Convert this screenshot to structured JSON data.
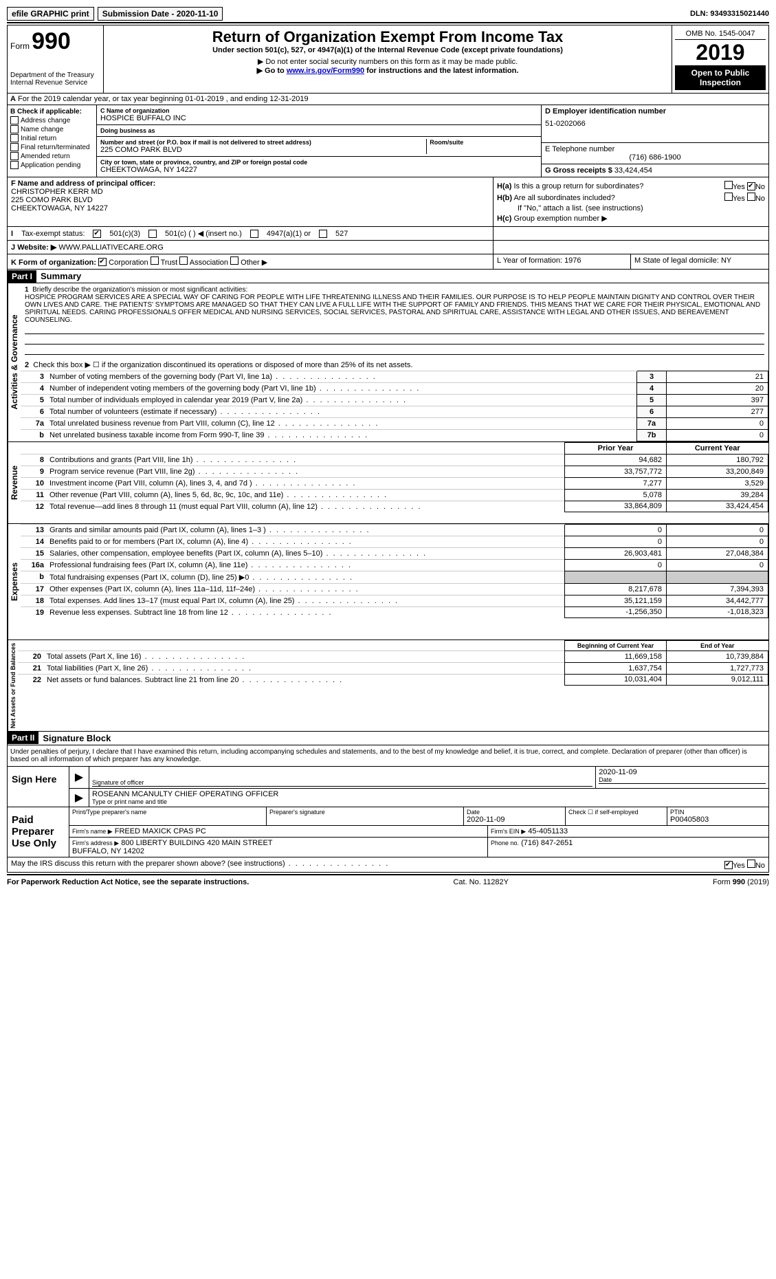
{
  "top_bar": {
    "efile": "efile GRAPHIC print",
    "submission": "Submission Date - 2020-11-10",
    "dln": "DLN: 93493315021440"
  },
  "header": {
    "form_label": "Form",
    "form_number": "990",
    "dept": "Department of the Treasury\nInternal Revenue Service",
    "title": "Return of Organization Exempt From Income Tax",
    "subtitle": "Under section 501(c), 527, or 4947(a)(1) of the Internal Revenue Code (except private foundations)",
    "note1": "Do not enter social security numbers on this form as it may be made public.",
    "note2_pre": "Go to ",
    "note2_link": "www.irs.gov/Form990",
    "note2_post": " for instructions and the latest information.",
    "omb": "OMB No. 1545-0047",
    "year": "2019",
    "open": "Open to Public Inspection"
  },
  "section_a": "For the 2019 calendar year, or tax year beginning 01-01-2019   , and ending 12-31-2019",
  "section_b": {
    "label": "Check if applicable:",
    "items": [
      "Address change",
      "Name change",
      "Initial return",
      "Final return/terminated",
      "Amended return",
      "Application pending"
    ]
  },
  "section_c": {
    "name_label": "C Name of organization",
    "name": "HOSPICE BUFFALO INC",
    "dba_label": "Doing business as",
    "dba": "",
    "street_label": "Number and street (or P.O. box if mail is not delivered to street address)",
    "room_label": "Room/suite",
    "street": "225 COMO PARK BLVD",
    "city_label": "City or town, state or province, country, and ZIP or foreign postal code",
    "city": "CHEEKTOWAGA, NY  14227"
  },
  "section_d": {
    "label": "D Employer identification number",
    "value": "51-0202066"
  },
  "section_e": {
    "label": "E Telephone number",
    "value": "(716) 686-1900"
  },
  "section_g": {
    "label": "G Gross receipts $",
    "value": "33,424,454"
  },
  "section_f": {
    "label": "F Name and address of principal officer:",
    "name": "CHRISTOPHER KERR MD",
    "addr1": "225 COMO PARK BLVD",
    "addr2": "CHEEKTOWAGA, NY  14227"
  },
  "section_h": {
    "ha": "Is this a group return for subordinates?",
    "hb": "Are all subordinates included?",
    "hb_note": "If \"No,\" attach a list. (see instructions)",
    "hc": "Group exemption number ▶",
    "ha_label": "H(a)",
    "hb_label": "H(b)",
    "hc_label": "H(c)",
    "yes": "Yes",
    "no": "No"
  },
  "section_i": {
    "label": "Tax-exempt status:",
    "opt1": "501(c)(3)",
    "opt2": "501(c) (   ) ◀ (insert no.)",
    "opt3": "4947(a)(1) or",
    "opt4": "527"
  },
  "section_j": {
    "label": "Website: ▶",
    "value": "WWW.PALLIATIVECARE.ORG"
  },
  "section_k": {
    "label": "K Form of organization:",
    "corp": "Corporation",
    "trust": "Trust",
    "assoc": "Association",
    "other": "Other ▶"
  },
  "section_l": {
    "label": "L Year of formation:",
    "value": "1976"
  },
  "section_m": {
    "label": "M State of legal domicile:",
    "value": "NY"
  },
  "part1": {
    "header": "Part I",
    "title": "Summary",
    "mission_label": "Briefly describe the organization's mission or most significant activities:",
    "mission": "HOSPICE PROGRAM SERVICES ARE A SPECIAL WAY OF CARING FOR PEOPLE WITH LIFE THREATENING ILLNESS AND THEIR FAMILIES. OUR PURPOSE IS TO HELP PEOPLE MAINTAIN DIGNITY AND CONTROL OVER THEIR OWN LIVES AND CARE. THE PATIENTS' SYMPTOMS ARE MANAGED SO THAT THEY CAN LIVE A FULL LIFE WITH THE SUPPORT OF FAMILY AND FRIENDS. THIS MEANS THAT WE CARE FOR THEIR PHYSICAL, EMOTIONAL AND SPIRITUAL NEEDS. CARING PROFESSIONALS OFFER MEDICAL AND NURSING SERVICES, SOCIAL SERVICES, PASTORAL AND SPIRITUAL CARE, ASSISTANCE WITH LEGAL AND OTHER ISSUES, AND BEREAVEMENT COUNSELING.",
    "line2": "Check this box ▶ ☐ if the organization discontinued its operations or disposed of more than 25% of its net assets.",
    "side_gov": "Activities & Governance",
    "side_rev": "Revenue",
    "side_exp": "Expenses",
    "side_net": "Net Assets or Fund Balances",
    "col_prior": "Prior Year",
    "col_current": "Current Year",
    "col_boy": "Beginning of Current Year",
    "col_eoy": "End of Year",
    "gov_rows": [
      {
        "n": "3",
        "d": "Number of voting members of the governing body (Part VI, line 1a)",
        "b": "3",
        "v": "21"
      },
      {
        "n": "4",
        "d": "Number of independent voting members of the governing body (Part VI, line 1b)",
        "b": "4",
        "v": "20"
      },
      {
        "n": "5",
        "d": "Total number of individuals employed in calendar year 2019 (Part V, line 2a)",
        "b": "5",
        "v": "397"
      },
      {
        "n": "6",
        "d": "Total number of volunteers (estimate if necessary)",
        "b": "6",
        "v": "277"
      },
      {
        "n": "7a",
        "d": "Total unrelated business revenue from Part VIII, column (C), line 12",
        "b": "7a",
        "v": "0"
      },
      {
        "n": "b",
        "d": "Net unrelated business taxable income from Form 990-T, line 39",
        "b": "7b",
        "v": "0"
      }
    ],
    "rev_rows": [
      {
        "n": "8",
        "d": "Contributions and grants (Part VIII, line 1h)",
        "p": "94,682",
        "c": "180,792"
      },
      {
        "n": "9",
        "d": "Program service revenue (Part VIII, line 2g)",
        "p": "33,757,772",
        "c": "33,200,849"
      },
      {
        "n": "10",
        "d": "Investment income (Part VIII, column (A), lines 3, 4, and 7d )",
        "p": "7,277",
        "c": "3,529"
      },
      {
        "n": "11",
        "d": "Other revenue (Part VIII, column (A), lines 5, 6d, 8c, 9c, 10c, and 11e)",
        "p": "5,078",
        "c": "39,284"
      },
      {
        "n": "12",
        "d": "Total revenue—add lines 8 through 11 (must equal Part VIII, column (A), line 12)",
        "p": "33,864,809",
        "c": "33,424,454"
      }
    ],
    "exp_rows": [
      {
        "n": "13",
        "d": "Grants and similar amounts paid (Part IX, column (A), lines 1–3 )",
        "p": "0",
        "c": "0"
      },
      {
        "n": "14",
        "d": "Benefits paid to or for members (Part IX, column (A), line 4)",
        "p": "0",
        "c": "0"
      },
      {
        "n": "15",
        "d": "Salaries, other compensation, employee benefits (Part IX, column (A), lines 5–10)",
        "p": "26,903,481",
        "c": "27,048,384"
      },
      {
        "n": "16a",
        "d": "Professional fundraising fees (Part IX, column (A), line 11e)",
        "p": "0",
        "c": "0"
      },
      {
        "n": "b",
        "d": "Total fundraising expenses (Part IX, column (D), line 25) ▶0",
        "p": "",
        "c": "",
        "shaded": true
      },
      {
        "n": "17",
        "d": "Other expenses (Part IX, column (A), lines 11a–11d, 11f–24e)",
        "p": "8,217,678",
        "c": "7,394,393"
      },
      {
        "n": "18",
        "d": "Total expenses. Add lines 13–17 (must equal Part IX, column (A), line 25)",
        "p": "35,121,159",
        "c": "34,442,777"
      },
      {
        "n": "19",
        "d": "Revenue less expenses. Subtract line 18 from line 12",
        "p": "-1,256,350",
        "c": "-1,018,323"
      }
    ],
    "net_rows": [
      {
        "n": "20",
        "d": "Total assets (Part X, line 16)",
        "p": "11,669,158",
        "c": "10,739,884"
      },
      {
        "n": "21",
        "d": "Total liabilities (Part X, line 26)",
        "p": "1,637,754",
        "c": "1,727,773"
      },
      {
        "n": "22",
        "d": "Net assets or fund balances. Subtract line 21 from line 20",
        "p": "10,031,404",
        "c": "9,012,111"
      }
    ]
  },
  "part2": {
    "header": "Part II",
    "title": "Signature Block",
    "perjury": "Under penalties of perjury, I declare that I have examined this return, including accompanying schedules and statements, and to the best of my knowledge and belief, it is true, correct, and complete. Declaration of preparer (other than officer) is based on all information of which preparer has any knowledge.",
    "sign_here": "Sign Here",
    "sig_officer_label": "Signature of officer",
    "sig_date": "2020-11-09",
    "sig_date_label": "Date",
    "officer_name": "ROSEANN MCANULTY CHIEF OPERATING OFFICER",
    "officer_name_label": "Type or print name and title",
    "paid": "Paid Preparer Use Only",
    "prep_name_label": "Print/Type preparer's name",
    "prep_sig_label": "Preparer's signature",
    "prep_date_label": "Date",
    "prep_date": "2020-11-09",
    "prep_check": "Check ☐ if self-employed",
    "ptin_label": "PTIN",
    "ptin": "P00405803",
    "firm_name_label": "Firm's name    ▶",
    "firm_name": "FREED MAXICK CPAS PC",
    "firm_ein_label": "Firm's EIN ▶",
    "firm_ein": "45-4051133",
    "firm_addr_label": "Firm's address ▶",
    "firm_addr": "800 LIBERTY BUILDING 420 MAIN STREET\nBUFFALO, NY  14202",
    "firm_phone_label": "Phone no.",
    "firm_phone": "(716) 847-2651",
    "discuss": "May the IRS discuss this return with the preparer shown above? (see instructions)",
    "yes": "Yes",
    "no": "No"
  },
  "footer": {
    "left": "For Paperwork Reduction Act Notice, see the separate instructions.",
    "center": "Cat. No. 11282Y",
    "right_a": "Form ",
    "right_b": "990",
    "right_c": " (2019)"
  }
}
